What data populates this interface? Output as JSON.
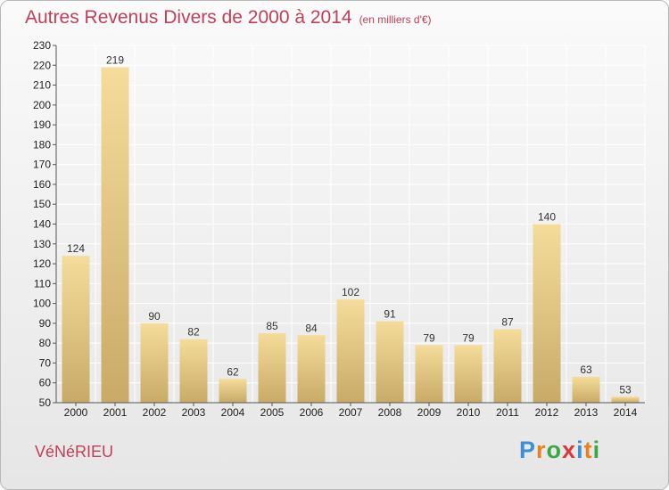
{
  "title": {
    "main": "Autres Revenus Divers de 2000 à 2014",
    "unit": "(en milliers d'€)"
  },
  "commune": "VéNéRIEU",
  "brand": {
    "letters": [
      "P",
      "r",
      "o",
      "x",
      "i",
      "t",
      "i"
    ],
    "colors": [
      "#3a8fd6",
      "#e8821e",
      "#39a845",
      "#d63a3a",
      "#3a8fd6",
      "#e8821e",
      "#39a845"
    ]
  },
  "colors": {
    "title": "#c0405a",
    "bar_light": "#f5dc9a",
    "bar_dark": "#c9aa67",
    "grid": "#ffffff",
    "axis": "#555555"
  },
  "chart_data": {
    "type": "bar",
    "title": "Autres Revenus Divers de 2000 à 2014",
    "subtitle": "(en milliers d'€)",
    "categories": [
      "2000",
      "2001",
      "2002",
      "2003",
      "2004",
      "2005",
      "2006",
      "2007",
      "2008",
      "2009",
      "2010",
      "2011",
      "2012",
      "2013",
      "2014"
    ],
    "values": [
      124,
      219,
      90,
      82,
      62,
      85,
      84,
      102,
      91,
      79,
      79,
      87,
      140,
      63,
      53
    ],
    "yticks": [
      50,
      60,
      70,
      80,
      90,
      100,
      110,
      120,
      130,
      140,
      150,
      160,
      170,
      180,
      190,
      200,
      210,
      220,
      230
    ],
    "ylim": [
      50,
      230
    ],
    "grid": true,
    "data_labels": true
  }
}
